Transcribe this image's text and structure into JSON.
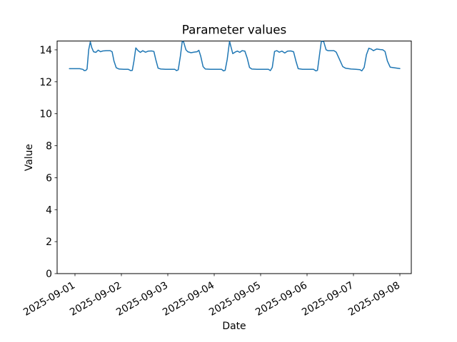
{
  "chart_data": {
    "type": "line",
    "title": "Parameter values",
    "xlabel": "Date",
    "ylabel": "Value",
    "grid": false,
    "legend": "none",
    "background_color": "#ffffff",
    "spine_color": "#000000",
    "text_color": "#000000",
    "ylim": [
      0,
      14.55
    ],
    "y_ticks": [
      0,
      2,
      4,
      6,
      8,
      10,
      12,
      14
    ],
    "x_tick_labels": [
      "2025-09-01",
      "2025-09-02",
      "2025-09-03",
      "2025-09-04",
      "2025-09-05",
      "2025-09-06",
      "2025-09-07",
      "2025-09-08"
    ],
    "x_tick_rotation_deg": 30,
    "series": [
      {
        "name": "Parameter values",
        "color": "#1f77b4",
        "line_width": 1.5,
        "x_days_from_first_tick": [
          -0.12,
          0.0,
          0.1,
          0.17,
          0.2,
          0.235,
          0.26,
          0.295,
          0.33,
          0.36,
          0.4,
          0.45,
          0.5,
          0.55,
          0.6,
          0.68,
          0.76,
          0.8,
          0.84,
          0.89,
          0.95,
          1.05,
          1.15,
          1.2,
          1.235,
          1.27,
          1.31,
          1.36,
          1.41,
          1.46,
          1.52,
          1.58,
          1.65,
          1.7,
          1.74,
          1.79,
          1.85,
          1.95,
          2.05,
          2.15,
          2.19,
          2.225,
          2.27,
          2.31,
          2.34,
          2.39,
          2.43,
          2.5,
          2.57,
          2.63,
          2.67,
          2.71,
          2.76,
          2.81,
          2.92,
          3.05,
          3.16,
          3.2,
          3.235,
          3.28,
          3.33,
          3.36,
          3.4,
          3.45,
          3.5,
          3.55,
          3.6,
          3.66,
          3.71,
          3.76,
          3.81,
          3.92,
          4.05,
          4.17,
          4.21,
          4.25,
          4.3,
          4.35,
          4.4,
          4.46,
          4.52,
          4.58,
          4.65,
          4.71,
          4.76,
          4.81,
          4.9,
          5.02,
          5.14,
          5.19,
          5.225,
          5.27,
          5.31,
          5.36,
          5.41,
          5.45,
          5.52,
          5.58,
          5.63,
          5.7,
          5.77,
          5.83,
          5.95,
          6.05,
          6.14,
          6.18,
          6.23,
          6.28,
          6.33,
          6.38,
          6.43,
          6.5,
          6.57,
          6.63,
          6.68,
          6.73,
          6.79,
          6.88,
          7.0
        ],
        "values": [
          12.82,
          12.82,
          12.82,
          12.78,
          12.7,
          12.72,
          12.8,
          14.0,
          14.5,
          14.15,
          13.88,
          13.84,
          13.98,
          13.88,
          13.93,
          13.95,
          13.95,
          13.88,
          13.3,
          12.88,
          12.8,
          12.78,
          12.78,
          12.7,
          12.72,
          13.3,
          14.12,
          13.95,
          13.84,
          13.95,
          13.85,
          13.92,
          13.93,
          13.9,
          13.4,
          12.85,
          12.8,
          12.78,
          12.78,
          12.78,
          12.7,
          12.75,
          13.6,
          14.52,
          14.5,
          14.0,
          13.88,
          13.82,
          13.86,
          13.88,
          13.97,
          13.6,
          12.95,
          12.8,
          12.78,
          12.78,
          12.78,
          12.68,
          12.72,
          13.4,
          14.54,
          14.2,
          13.76,
          13.86,
          13.92,
          13.84,
          13.95,
          13.92,
          13.5,
          12.9,
          12.8,
          12.78,
          12.78,
          12.78,
          12.7,
          12.9,
          13.9,
          13.95,
          13.85,
          13.92,
          13.8,
          13.92,
          13.93,
          13.88,
          13.3,
          12.82,
          12.78,
          12.78,
          12.78,
          12.68,
          12.72,
          13.7,
          14.55,
          14.5,
          14.0,
          13.95,
          13.95,
          13.95,
          13.85,
          13.4,
          12.95,
          12.85,
          12.8,
          12.78,
          12.76,
          12.68,
          12.9,
          13.7,
          14.1,
          14.05,
          13.95,
          14.05,
          14.02,
          14.0,
          13.9,
          13.3,
          12.92,
          12.88,
          12.83
        ]
      }
    ]
  }
}
